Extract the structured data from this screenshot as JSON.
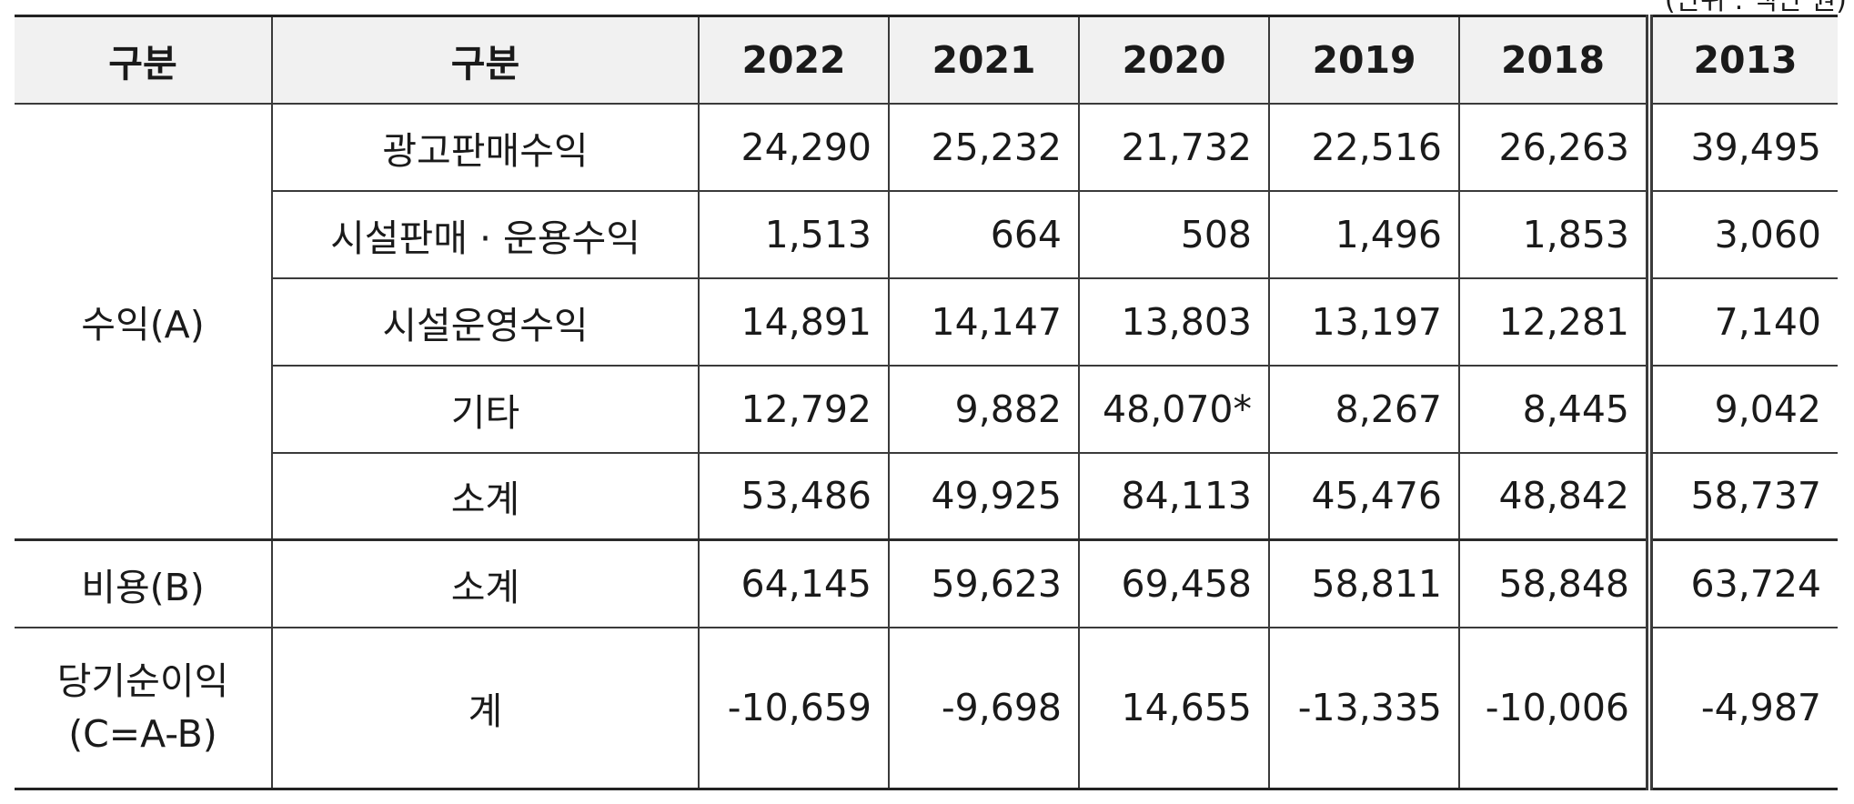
{
  "unit_note": "(단위 : 백만 원)",
  "headers": [
    "구분",
    "구분",
    "2022",
    "2021",
    "2020",
    "2019",
    "2018",
    "2013"
  ],
  "groups": {
    "revenue": "수익(A)",
    "cost": "비용(B)",
    "net_line1": "당기순이익",
    "net_line2": "(C=A-B)"
  },
  "rows": [
    {
      "label": "광고판매수익",
      "values": [
        "24,290",
        "25,232",
        "21,732",
        "22,516",
        "26,263",
        "39,495"
      ]
    },
    {
      "label": "시설판매 · 운용수익",
      "values": [
        "1,513",
        "664",
        "508",
        "1,496",
        "1,853",
        "3,060"
      ]
    },
    {
      "label": "시설운영수익",
      "values": [
        "14,891",
        "14,147",
        "13,803",
        "13,197",
        "12,281",
        "7,140"
      ]
    },
    {
      "label": "기타",
      "values": [
        "12,792",
        "9,882",
        "48,070*",
        "8,267",
        "8,445",
        "9,042"
      ]
    },
    {
      "label": "소계",
      "values": [
        "53,486",
        "49,925",
        "84,113",
        "45,476",
        "48,842",
        "58,737"
      ]
    },
    {
      "label": "소계",
      "values": [
        "64,145",
        "59,623",
        "69,458",
        "58,811",
        "58,848",
        "63,724"
      ]
    },
    {
      "label": "계",
      "values": [
        "-10,659",
        "-9,698",
        "14,655",
        "-13,335",
        "-10,006",
        "-4,987"
      ]
    }
  ]
}
